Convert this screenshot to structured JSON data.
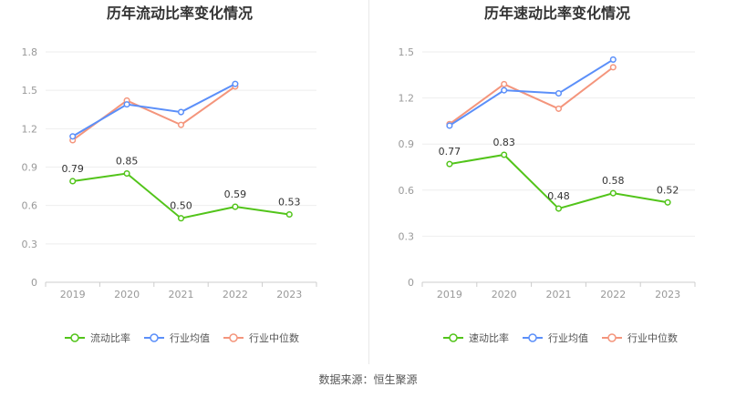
{
  "source": "数据来源：恒生聚源",
  "colors": {
    "main": "#52c41a",
    "avg": "#5b8ff9",
    "median": "#f4957c",
    "axis": "#999999",
    "grid": "#eeeeee"
  },
  "chart_data": [
    {
      "type": "line",
      "title": "历年流动比率变化情况",
      "categories": [
        "2019",
        "2020",
        "2021",
        "2022",
        "2023"
      ],
      "ylim": [
        0,
        1.8
      ],
      "yticks": [
        "0",
        "0.3",
        "0.6",
        "0.9",
        "1.2",
        "1.5",
        "1.8"
      ],
      "grid": true,
      "legend_position": "bottom",
      "series": [
        {
          "name": "流动比率",
          "values": [
            0.79,
            0.85,
            0.5,
            0.59,
            0.53
          ],
          "labels": [
            "0.79",
            "0.85",
            "0.50",
            "0.59",
            "0.53"
          ]
        },
        {
          "name": "行业均值",
          "values": [
            1.14,
            1.39,
            1.33,
            1.55,
            null
          ]
        },
        {
          "name": "行业中位数",
          "values": [
            1.11,
            1.42,
            1.23,
            1.53,
            null
          ]
        }
      ]
    },
    {
      "type": "line",
      "title": "历年速动比率变化情况",
      "categories": [
        "2019",
        "2020",
        "2021",
        "2022",
        "2023"
      ],
      "ylim": [
        0,
        1.5
      ],
      "yticks": [
        "0",
        "0.3",
        "0.6",
        "0.9",
        "1.2",
        "1.5"
      ],
      "grid": true,
      "legend_position": "bottom",
      "series": [
        {
          "name": "速动比率",
          "values": [
            0.77,
            0.83,
            0.48,
            0.58,
            0.52
          ],
          "labels": [
            "0.77",
            "0.83",
            "0.48",
            "0.58",
            "0.52"
          ]
        },
        {
          "name": "行业均值",
          "values": [
            1.02,
            1.25,
            1.23,
            1.45,
            null
          ]
        },
        {
          "name": "行业中位数",
          "values": [
            1.03,
            1.29,
            1.13,
            1.4,
            null
          ]
        }
      ]
    }
  ]
}
